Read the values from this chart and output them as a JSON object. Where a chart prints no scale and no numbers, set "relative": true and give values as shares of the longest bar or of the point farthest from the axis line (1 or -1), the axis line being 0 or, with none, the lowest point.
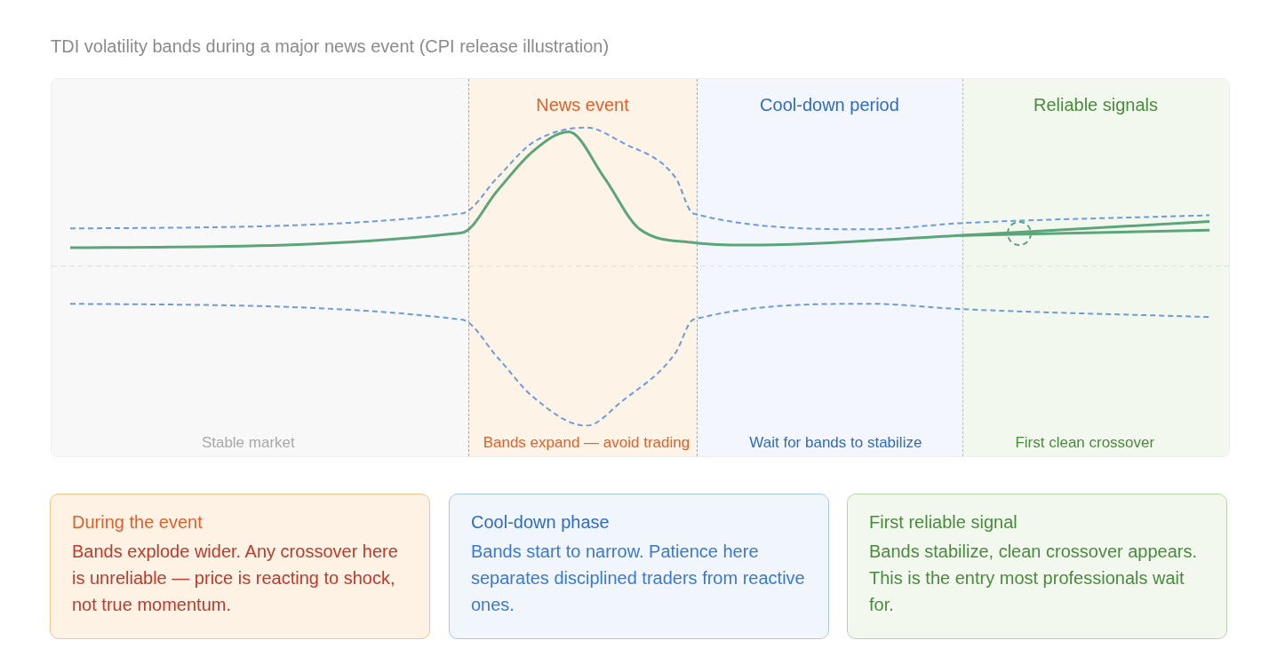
{
  "chart_data": [
    {
      "type": "line",
      "title": "TDI volatility bands during a major news event (CPI release illustration)",
      "relative": true,
      "tick_labels": "x",
      "line_style": "solid",
      "marker": "none",
      "categories": [
        null,
        null,
        null,
        null,
        null,
        null,
        null,
        null,
        null,
        null,
        "Stable market",
        null,
        null,
        null,
        null,
        null,
        null,
        null,
        null,
        null,
        null,
        null,
        null,
        null,
        null,
        null,
        null,
        null,
        null,
        "Bands expand — avoid trading",
        null,
        null,
        null,
        null,
        null,
        null,
        null,
        null,
        null,
        null,
        null,
        null,
        null,
        "Wait for bands to stabilize",
        null,
        null,
        null,
        null,
        null,
        null,
        null,
        null,
        null,
        null,
        null,
        null,
        null,
        "First clean crossover",
        null,
        null,
        null,
        null,
        null,
        null,
        null
      ],
      "series": [
        {
          "color": "#6b9be0",
          "line_style": "dashed",
          "values": [
            0.236,
            null,
            null,
            null,
            null,
            null,
            null,
            null,
            null,
            null,
            null,
            null,
            null,
            null,
            null,
            null,
            null,
            null,
            null,
            null,
            null,
            null,
            0.33,
            null,
            0.555,
            null,
            0.775,
            null,
            null,
            0.868,
            null,
            0.775,
            null,
            null,
            0.555,
            0.33,
            null,
            null,
            null,
            null,
            null,
            null,
            null,
            null,
            null,
            0.231,
            null,
            null,
            null,
            null,
            0.269,
            null,
            null,
            null,
            null,
            null,
            null,
            null,
            null,
            null,
            null,
            null,
            null,
            null,
            0.319
          ]
        },
        {
          "color": "#6b9be0",
          "line_style": "dashed",
          "values": [
            -0.236,
            null,
            null,
            null,
            null,
            null,
            null,
            null,
            null,
            null,
            null,
            null,
            null,
            null,
            null,
            null,
            null,
            null,
            null,
            null,
            null,
            null,
            -0.335,
            null,
            -0.571,
            null,
            -0.819,
            null,
            null,
            -1,
            null,
            -0.846,
            null,
            null,
            -0.544,
            -0.335,
            null,
            null,
            null,
            null,
            null,
            null,
            null,
            null,
            null,
            -0.236,
            null,
            null,
            null,
            null,
            -0.269,
            null,
            null,
            null,
            null,
            null,
            null,
            null,
            null,
            null,
            null,
            null,
            null,
            null,
            -0.319
          ]
        },
        {
          "color": "#5aa57a",
          "values": [
            0.115,
            null,
            null,
            null,
            null,
            null,
            null,
            null,
            null,
            null,
            null,
            null,
            null,
            null,
            null,
            null,
            null,
            null,
            null,
            null,
            null,
            null,
            0.209,
            null,
            0.473,
            null,
            0.72,
            null,
            0.841,
            null,
            0.555,
            null,
            0.231,
            null,
            null,
            0.148,
            null,
            null,
            0.132,
            null,
            null,
            null,
            null,
            null,
            null,
            null,
            null,
            null,
            null,
            null,
            0.192,
            null,
            null,
            null,
            null,
            null,
            null,
            null,
            null,
            null,
            null,
            null,
            null,
            null,
            0.28
          ]
        },
        {
          "color": "#5aa57a",
          "values": [
            null,
            null,
            null,
            null,
            null,
            null,
            null,
            null,
            null,
            null,
            null,
            null,
            null,
            null,
            null,
            null,
            null,
            null,
            null,
            null,
            null,
            null,
            null,
            null,
            null,
            null,
            null,
            null,
            null,
            null,
            null,
            null,
            null,
            null,
            null,
            null,
            null,
            null,
            null,
            null,
            null,
            null,
            null,
            null,
            null,
            null,
            null,
            null,
            null,
            null,
            0.192,
            null,
            null,
            null,
            null,
            null,
            null,
            null,
            null,
            null,
            null,
            null,
            null,
            null,
            0.225
          ]
        }
      ],
      "ref_lines": [
        {
          "axis": "y",
          "value": 0,
          "color": "#dddddd",
          "line_style": "dashed"
        }
      ],
      "annotations": [
        "News event",
        "Cool-down period",
        "Reliable signals"
      ]
    },
    {
      "type": "other",
      "title": "During the event",
      "annotations": [
        "Bands explode wider. Any crossover here is unreliable — price is reacting to shock, not true momentum."
      ]
    },
    {
      "type": "other",
      "title": "Cool-down phase",
      "annotations": [
        "Bands start to narrow. Patience here separates disciplined traders from reactive ones."
      ]
    },
    {
      "type": "other",
      "title": "First reliable signal",
      "annotations": [
        "Bands stabilize, clean crossover appears. This is the entry most professionals wait for."
      ]
    }
  ]
}
